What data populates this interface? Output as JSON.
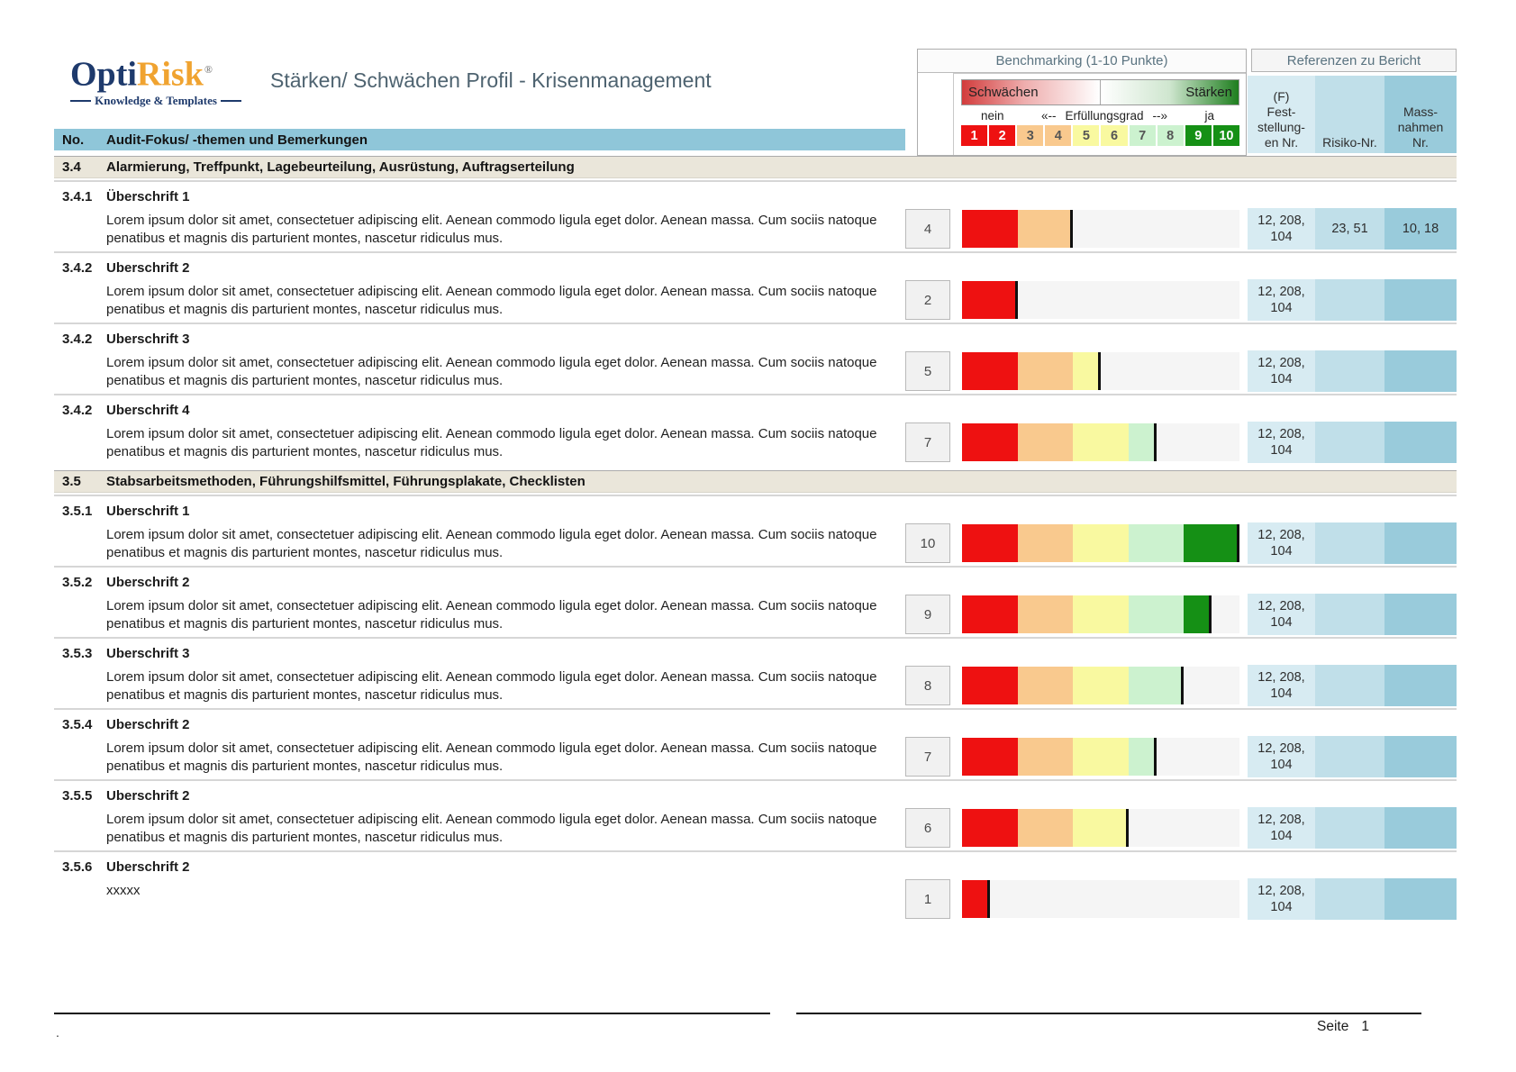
{
  "logo": {
    "brand_primary": "Opti",
    "brand_secondary": "Risk",
    "registered": "®",
    "tagline": "Knowledge & Templates"
  },
  "title": "Stärken/ Schwächen Profil - Krisenmanagement",
  "benchmarking": {
    "title": "Benchmarking (1-10 Punkte)",
    "weak_label": "Schwächen",
    "strong_label": "Stärken",
    "no_label": "nein",
    "yes_label": "ja",
    "caption": {
      "left": "«--",
      "label": "Erfüllungsgrad",
      "right": "--»"
    },
    "scale": [
      "1",
      "2",
      "3",
      "4",
      "5",
      "6",
      "7",
      "8",
      "9",
      "10"
    ]
  },
  "references": {
    "title": "Referenzen zu Bericht",
    "col1": "(F)\nFest-\nstellung-\nen Nr.",
    "col2": "Risiko-Nr.",
    "col3": "Mass-\nnahmen\nNr."
  },
  "table_header": {
    "no": "No.",
    "topic": "Audit-Fokus/ -themen und Bemerkungen"
  },
  "rows": [
    {
      "type": "section",
      "no": "3.4",
      "title": "Alarmierung, Treffpunkt, Lagebeurteilung, Ausrüstung, Auftragserteilung"
    },
    {
      "type": "item",
      "no": "3.4.1",
      "heading": "Überschrift 1",
      "body": "Lorem ipsum dolor sit amet, consectetuer adipiscing elit. Aenean commodo ligula eget dolor. Aenean massa. Cum sociis natoque penatibus et magnis dis parturient montes, nascetur ridiculus mus.",
      "score": 4,
      "refs": [
        "12, 208, 104",
        "23, 51",
        "10, 18"
      ]
    },
    {
      "type": "item",
      "no": "3.4.2",
      "heading": "Uberschrift 2",
      "body": "Lorem ipsum dolor sit amet, consectetuer adipiscing elit. Aenean commodo ligula eget dolor. Aenean massa. Cum sociis natoque penatibus et magnis dis parturient montes, nascetur ridiculus mus.",
      "score": 2,
      "refs": [
        "12, 208, 104",
        "",
        ""
      ]
    },
    {
      "type": "item",
      "no": "3.4.2",
      "heading": "Uberschrift 3",
      "body": "Lorem ipsum dolor sit amet, consectetuer adipiscing elit. Aenean commodo ligula eget dolor. Aenean massa. Cum sociis natoque penatibus et magnis dis parturient montes, nascetur ridiculus mus.",
      "score": 5,
      "refs": [
        "12, 208, 104",
        "",
        ""
      ]
    },
    {
      "type": "item",
      "no": "3.4.2",
      "heading": "Uberschrift 4",
      "body": "Lorem ipsum dolor sit amet, consectetuer adipiscing elit. Aenean commodo ligula eget dolor. Aenean massa. Cum sociis natoque penatibus et magnis dis parturient montes, nascetur ridiculus mus.",
      "score": 7,
      "refs": [
        "12, 208, 104",
        "",
        ""
      ]
    },
    {
      "type": "section",
      "no": "3.5",
      "title": "Stabsarbeitsmethoden, Führungshilfsmittel, Führungsplakate, Checklisten"
    },
    {
      "type": "item",
      "no": "3.5.1",
      "heading": "Uberschrift 1",
      "body": "Lorem ipsum dolor sit amet, consectetuer adipiscing elit. Aenean commodo ligula eget dolor. Aenean massa. Cum sociis natoque penatibus et magnis dis parturient montes, nascetur ridiculus mus.",
      "score": 10,
      "refs": [
        "12, 208, 104",
        "",
        ""
      ]
    },
    {
      "type": "item",
      "no": "3.5.2",
      "heading": "Uberschrift 2",
      "body": "Lorem ipsum dolor sit amet, consectetuer adipiscing elit. Aenean commodo ligula eget dolor. Aenean massa. Cum sociis natoque penatibus et magnis dis parturient montes, nascetur ridiculus mus.",
      "score": 9,
      "refs": [
        "12, 208, 104",
        "",
        ""
      ]
    },
    {
      "type": "item",
      "no": "3.5.3",
      "heading": "Uberschrift 3",
      "body": "Lorem ipsum dolor sit amet, consectetuer adipiscing elit. Aenean commodo ligula eget dolor. Aenean massa. Cum sociis natoque penatibus et magnis dis parturient montes, nascetur ridiculus mus.",
      "score": 8,
      "refs": [
        "12, 208, 104",
        "",
        ""
      ]
    },
    {
      "type": "item",
      "no": "3.5.4",
      "heading": "Uberschrift 2",
      "body": "Lorem ipsum dolor sit amet, consectetuer adipiscing elit. Aenean commodo ligula eget dolor. Aenean massa. Cum sociis natoque penatibus et magnis dis parturient montes, nascetur ridiculus mus.",
      "score": 7,
      "refs": [
        "12, 208, 104",
        "",
        ""
      ]
    },
    {
      "type": "item",
      "no": "3.5.5",
      "heading": "Uberschrift 2",
      "body": "Lorem ipsum dolor sit amet, consectetuer adipiscing elit. Aenean commodo ligula eget dolor. Aenean massa. Cum sociis natoque penatibus et magnis dis parturient montes, nascetur ridiculus mus.",
      "score": 6,
      "refs": [
        "12, 208, 104",
        "",
        ""
      ]
    },
    {
      "type": "item",
      "no": "3.5.6",
      "heading": "Uberschrift 2",
      "body": "xxxxx",
      "score": 1,
      "refs": [
        "12, 208, 104",
        "",
        ""
      ]
    }
  ],
  "footer": {
    "left_mark": ".",
    "page_label": "Seite",
    "page_number": "1"
  },
  "colors": {
    "red": "#ee1111",
    "orange": "#f9c98e",
    "yellow": "#f9f9a0",
    "lightGreen": "#ccf2cf",
    "darkGreen": "#159015",
    "headerBlue": "#8fc6d9",
    "sectionBeige": "#eae6da",
    "refCol1": "#d7ebf2",
    "refCol2": "#c0dfe9",
    "refCol3": "#99cbdb",
    "logoNavy": "#1e3a6c",
    "logoOrange": "#f0a330"
  }
}
